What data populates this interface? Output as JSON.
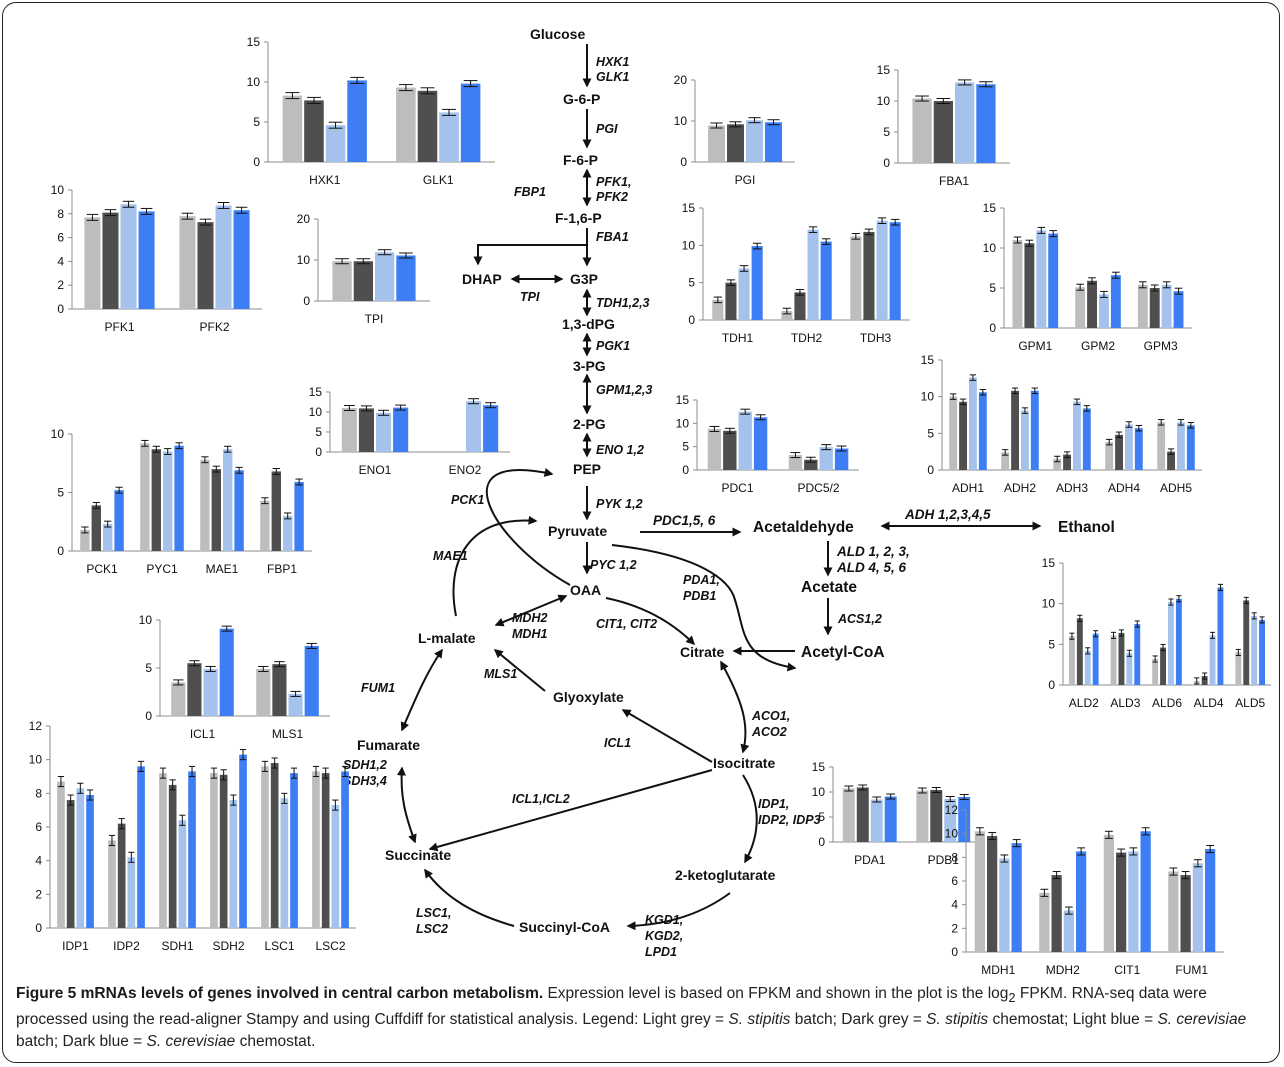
{
  "colors": {
    "light_grey": "#bdbdbd",
    "dark_grey": "#4f4f4f",
    "light_blue": "#a4c2ec",
    "dark_blue": "#3d7ef4",
    "axis": "#8c8c8c",
    "arrow": "#111111"
  },
  "pathway": {
    "nodes": {
      "glucose": "Glucose",
      "g6p": "G-6-P",
      "f6p": "F-6-P",
      "f16p": "F-1,6-P",
      "dhap": "DHAP",
      "g3p": "G3P",
      "dpg13": "1,3-dPG",
      "pg3": "3-PG",
      "pg2": "2-PG",
      "pep": "PEP",
      "pyruvate": "Pyruvate",
      "oaa": "OAA",
      "lmalate": "L-malate",
      "citrate": "Citrate",
      "glyoxylate": "Glyoxylate",
      "fumarate": "Fumarate",
      "isocitrate": "Isocitrate",
      "succinate": "Succinate",
      "ketoglutarate": "2-ketoglutarate",
      "succinylcoa": "Succinyl-CoA",
      "acetaldehyde": "Acetaldehyde",
      "ethanol": "Ethanol",
      "acetate": "Acetate",
      "acetylcoa": "Acetyl-CoA"
    },
    "enzymes": {
      "hxk1": "HXK1",
      "glk1": "GLK1",
      "pgi": "PGI",
      "fbp1": "FBP1",
      "pfk": "PFK1,",
      "pfk2": "PFK2",
      "fba1": "FBA1",
      "tpi": "TPI",
      "tdh": "TDH1,2,3",
      "pgk1": "PGK1",
      "gpm": "GPM1,2,3",
      "eno": "ENO 1,2",
      "pyk": "PYK 1,2",
      "pck1": "PCK1",
      "mae1": "MAE1",
      "pyc": "PYC 1,2",
      "pdc": "PDC1,5, 6",
      "adh": "ADH 1,2,3,4,5",
      "ald1": "ALD 1, 2, 3,",
      "ald2": "ALD 4, 5, 6",
      "pda1": "PDA1,",
      "pdb1": "PDB1",
      "acs": "ACS1,2",
      "mdh2": "MDH2",
      "mdh1": "MDH1",
      "cit": "CIT1, CIT2",
      "mls1": "MLS1",
      "fum1": "FUM1",
      "icl1": "ICL1",
      "aco1": "ACO1,",
      "aco2": "ACO2",
      "icl12": "ICL1,ICL2",
      "sdh12": "SDH1,2",
      "sdh34": "SDH3,4",
      "idp1": "IDP1,",
      "idp23": "IDP2, IDP3",
      "lsc1": "LSC1,",
      "lsc2": "LSC2",
      "kgd1": "KGD1,",
      "kgd2": "KGD2,",
      "lpd1": "LPD1"
    }
  },
  "chart_data": [
    {
      "type": "bar",
      "title": "",
      "ylim": [
        0,
        15
      ],
      "yticks": [
        0,
        5,
        10,
        15
      ],
      "categories": [
        "HXK1",
        "GLK1"
      ],
      "series": [
        {
          "values": [
            8.3,
            9.3
          ]
        },
        {
          "values": [
            7.7,
            8.9
          ]
        },
        {
          "values": [
            4.6,
            6.2
          ]
        },
        {
          "values": [
            10.2,
            9.8
          ]
        }
      ]
    },
    {
      "type": "bar",
      "title": "",
      "ylim": [
        0,
        20
      ],
      "yticks": [
        0,
        10,
        20
      ],
      "categories": [
        "PGI"
      ],
      "series": [
        {
          "values": [
            8.9
          ]
        },
        {
          "values": [
            9.2
          ]
        },
        {
          "values": [
            10.2
          ]
        },
        {
          "values": [
            9.7
          ]
        }
      ]
    },
    {
      "type": "bar",
      "title": "",
      "ylim": [
        0,
        15
      ],
      "yticks": [
        0,
        5,
        10,
        15
      ],
      "categories": [
        "FBA1"
      ],
      "series": [
        {
          "values": [
            10.4
          ]
        },
        {
          "values": [
            10.0
          ]
        },
        {
          "values": [
            13.0
          ]
        },
        {
          "values": [
            12.7
          ]
        }
      ]
    },
    {
      "type": "bar",
      "title": "",
      "ylim": [
        0,
        10
      ],
      "yticks": [
        0,
        2,
        4,
        6,
        8,
        10
      ],
      "categories": [
        "PFK1",
        "PFK2"
      ],
      "series": [
        {
          "values": [
            7.7,
            7.8
          ]
        },
        {
          "values": [
            8.1,
            7.3
          ]
        },
        {
          "values": [
            8.8,
            8.7
          ]
        },
        {
          "values": [
            8.2,
            8.3
          ]
        }
      ]
    },
    {
      "type": "bar",
      "title": "",
      "ylim": [
        0,
        20
      ],
      "yticks": [
        0,
        10,
        20
      ],
      "categories": [
        "TPI"
      ],
      "series": [
        {
          "values": [
            9.7
          ]
        },
        {
          "values": [
            9.7
          ]
        },
        {
          "values": [
            11.9
          ]
        },
        {
          "values": [
            11.1
          ]
        }
      ]
    },
    {
      "type": "bar",
      "title": "",
      "ylim": [
        0,
        15
      ],
      "yticks": [
        0,
        5,
        10,
        15
      ],
      "categories": [
        "TDH1",
        "TDH2",
        "TDH3"
      ],
      "series": [
        {
          "values": [
            2.7,
            1.2,
            11.2
          ]
        },
        {
          "values": [
            5.0,
            3.7,
            11.8
          ]
        },
        {
          "values": [
            6.9,
            12.1,
            13.3
          ]
        },
        {
          "values": [
            9.9,
            10.5,
            13.1
          ]
        }
      ]
    },
    {
      "type": "bar",
      "title": "",
      "ylim": [
        0,
        15
      ],
      "yticks": [
        0,
        5,
        10,
        15
      ],
      "categories": [
        "GPM1",
        "GPM2",
        "GPM3"
      ],
      "series": [
        {
          "values": [
            11.0,
            5.1,
            5.4
          ]
        },
        {
          "values": [
            10.6,
            5.9,
            5.0
          ]
        },
        {
          "values": [
            12.2,
            4.2,
            5.4
          ]
        },
        {
          "values": [
            11.8,
            6.6,
            4.6
          ]
        }
      ]
    },
    {
      "type": "bar",
      "title": "",
      "ylim": [
        0,
        15
      ],
      "yticks": [
        0,
        5,
        10,
        15
      ],
      "categories": [
        "ENO1",
        "ENO2"
      ],
      "series": [
        {
          "values": [
            11.0,
            0
          ]
        },
        {
          "values": [
            10.9,
            0
          ]
        },
        {
          "values": [
            9.8,
            12.7
          ]
        },
        {
          "values": [
            11.1,
            11.7
          ]
        }
      ]
    },
    {
      "type": "bar",
      "title": "",
      "ylim": [
        0,
        15
      ],
      "yticks": [
        0,
        5,
        10,
        15
      ],
      "categories": [
        "PDC1",
        "PDC5/2"
      ],
      "series": [
        {
          "values": [
            8.8,
            3.2
          ]
        },
        {
          "values": [
            8.4,
            2.2
          ]
        },
        {
          "values": [
            12.5,
            4.9
          ]
        },
        {
          "values": [
            11.3,
            4.6
          ]
        }
      ]
    },
    {
      "type": "bar",
      "title": "",
      "ylim": [
        0,
        15
      ],
      "yticks": [
        0,
        5,
        10,
        15
      ],
      "categories": [
        "ADH1",
        "ADH2",
        "ADH3",
        "ADH4",
        "ADH5"
      ],
      "series": [
        {
          "values": [
            10.0,
            2.4,
            1.5,
            3.8,
            6.5
          ]
        },
        {
          "values": [
            9.3,
            10.8,
            2.1,
            4.8,
            2.5
          ]
        },
        {
          "values": [
            12.6,
            8.1,
            9.3,
            6.2,
            6.5
          ]
        },
        {
          "values": [
            10.6,
            10.8,
            8.4,
            5.7,
            6.1
          ]
        }
      ]
    },
    {
      "type": "bar",
      "title": "",
      "ylim": [
        0,
        10
      ],
      "yticks": [
        0,
        5,
        10
      ],
      "categories": [
        "PCK1",
        "PYC1",
        "MAE1",
        "FBP1"
      ],
      "series": [
        {
          "values": [
            1.8,
            9.2,
            7.8,
            4.3
          ]
        },
        {
          "values": [
            3.9,
            8.7,
            7.0,
            6.8
          ]
        },
        {
          "values": [
            2.3,
            8.5,
            8.7,
            3.0
          ]
        },
        {
          "values": [
            5.2,
            9.0,
            6.9,
            5.9
          ]
        }
      ]
    },
    {
      "type": "bar",
      "title": "",
      "ylim": [
        0,
        10
      ],
      "yticks": [
        0,
        5,
        10
      ],
      "categories": [
        "ICL1",
        "MLS1"
      ],
      "series": [
        {
          "values": [
            3.5,
            4.9
          ]
        },
        {
          "values": [
            5.5,
            5.4
          ]
        },
        {
          "values": [
            4.9,
            2.3
          ]
        },
        {
          "values": [
            9.1,
            7.3
          ]
        }
      ]
    },
    {
      "type": "bar",
      "title": "",
      "ylim": [
        0,
        15
      ],
      "yticks": [
        0,
        5,
        10,
        15
      ],
      "categories": [
        "ALD2",
        "ALD3",
        "ALD6",
        "ALD4",
        "ALD5"
      ],
      "series": [
        {
          "values": [
            6.0,
            6.1,
            3.2,
            0.5,
            4.0
          ]
        },
        {
          "values": [
            8.2,
            6.4,
            4.6,
            1.1,
            10.4
          ]
        },
        {
          "values": [
            4.2,
            3.9,
            10.2,
            6.1,
            8.5
          ]
        },
        {
          "values": [
            6.3,
            7.5,
            10.6,
            12.0,
            8.0
          ]
        }
      ]
    },
    {
      "type": "bar",
      "title": "",
      "ylim": [
        0,
        15
      ],
      "yticks": [
        0,
        5,
        10,
        15
      ],
      "categories": [
        "PDA1",
        "PDB1"
      ],
      "series": [
        {
          "values": [
            10.7,
            10.3
          ]
        },
        {
          "values": [
            10.9,
            10.4
          ]
        },
        {
          "values": [
            8.5,
            8.6
          ]
        },
        {
          "values": [
            9.1,
            9.0
          ]
        }
      ]
    },
    {
      "type": "bar",
      "title": "",
      "ylim": [
        0,
        12
      ],
      "yticks": [
        0,
        2,
        4,
        6,
        8,
        10,
        12
      ],
      "categories": [
        "IDP1",
        "IDP2",
        "SDH1",
        "SDH2",
        "LSC1",
        "LSC2"
      ],
      "series": [
        {
          "values": [
            8.7,
            5.2,
            9.2,
            9.2,
            9.6,
            9.3
          ]
        },
        {
          "values": [
            7.6,
            6.2,
            8.5,
            9.1,
            9.8,
            9.2
          ]
        },
        {
          "values": [
            8.3,
            4.2,
            6.4,
            7.6,
            7.7,
            7.3
          ]
        },
        {
          "values": [
            7.9,
            9.6,
            9.3,
            10.3,
            9.2,
            9.3
          ]
        }
      ]
    },
    {
      "type": "bar",
      "title": "",
      "ylim": [
        0,
        12
      ],
      "yticks": [
        0,
        2,
        4,
        6,
        8,
        10,
        12
      ],
      "categories": [
        "MDH1",
        "MDH2",
        "CIT1",
        "FUM1"
      ],
      "series": [
        {
          "values": [
            10.2,
            5.0,
            9.9,
            6.8
          ]
        },
        {
          "values": [
            9.8,
            6.5,
            8.4,
            6.5
          ]
        },
        {
          "values": [
            7.9,
            3.5,
            8.5,
            7.5
          ]
        },
        {
          "values": [
            9.2,
            8.5,
            10.2,
            8.7
          ]
        }
      ]
    }
  ],
  "caption": {
    "fig_label": "Figure 5 mRNAs levels of genes involved in central carbon metabolism.",
    "t1": " Expression level is based on FPKM and shown in the plot is the log",
    "sub": "2",
    "t2": " FPKM. RNA-seq data were processed using the read-aligner Stampy and using Cuffdiff for statistical analysis. Legend: Light grey = ",
    "sp1": "S. stipitis",
    "t3": " batch; Dark grey = ",
    "sp2": "S. stipitis",
    "t4": " chemostat; Light blue = ",
    "sp3": "S. cerevisiae",
    "t5": " batch; Dark blue = ",
    "sp4": "S. cerevisiae",
    "t6": " chemostat."
  }
}
